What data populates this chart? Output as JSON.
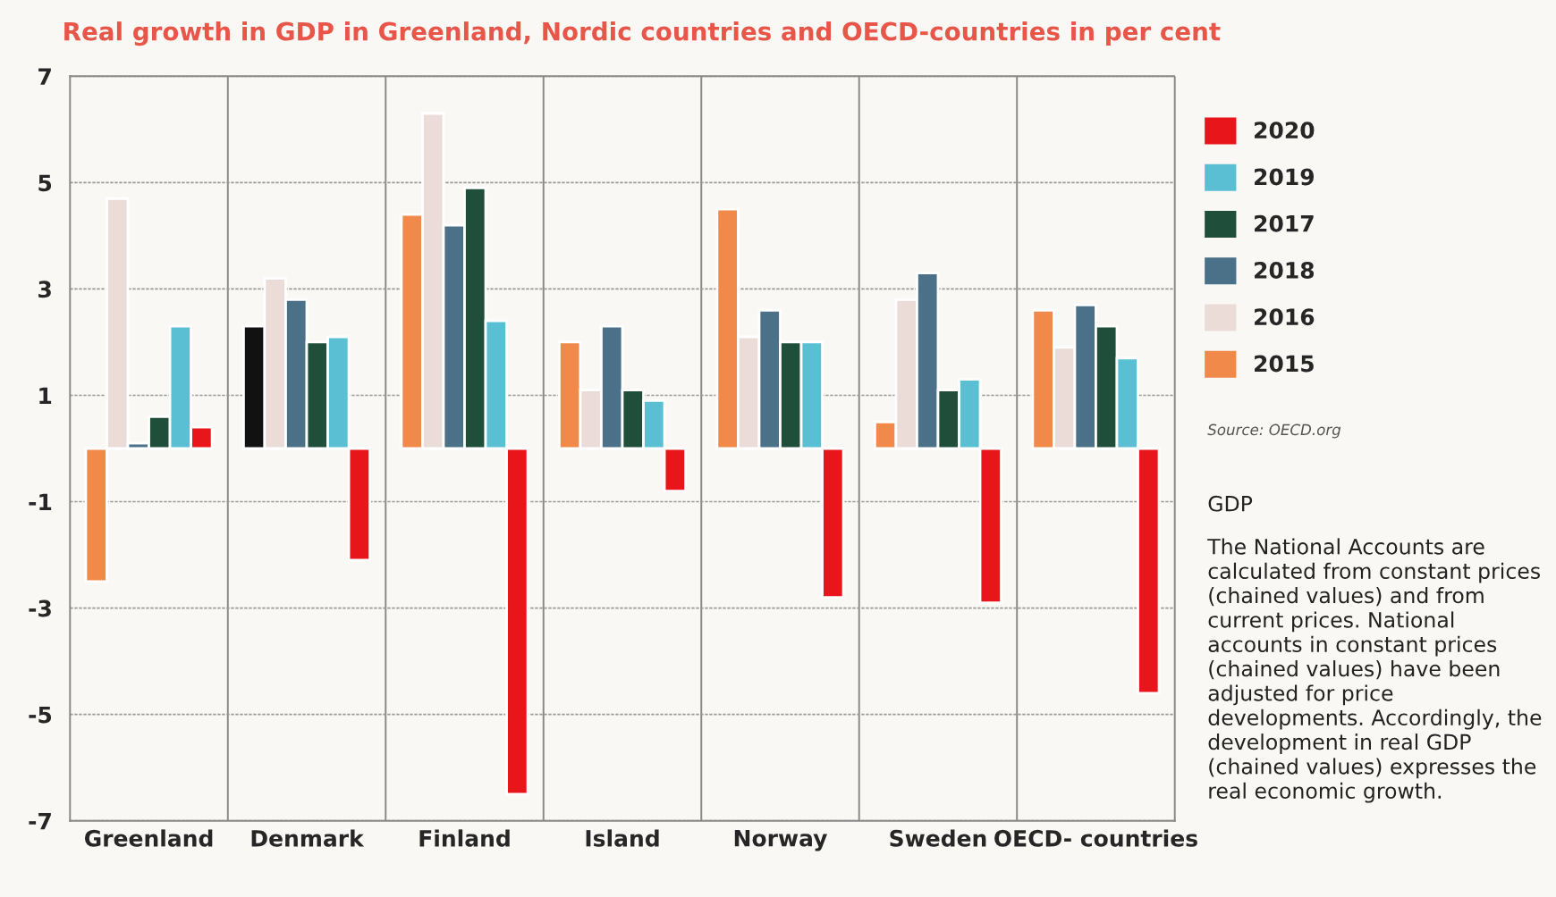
{
  "chart_data": {
    "type": "bar",
    "title": "Real growth in GDP in Greenland, Nordic countries and OECD-countries in per cent",
    "categories": [
      "Greenland",
      "Denmark",
      "Finland",
      "Island",
      "Norway",
      "Sweden",
      "OECD- countries"
    ],
    "series": [
      {
        "name": "2015",
        "color": "#f0894a",
        "colors": [
          "#f0894a",
          "#111111",
          "#f0894a",
          "#f0894a",
          "#f0894a",
          "#f0894a",
          "#f0894a"
        ],
        "values": [
          -2.5,
          2.3,
          4.4,
          2.0,
          4.5,
          0.5,
          2.6
        ]
      },
      {
        "name": "2016",
        "color": "#ecdcd7",
        "values": [
          4.7,
          3.2,
          6.3,
          1.1,
          2.1,
          2.8,
          1.9
        ]
      },
      {
        "name": "2018",
        "color": "#4a7188",
        "values": [
          0.1,
          2.8,
          4.2,
          2.3,
          2.6,
          3.3,
          2.7
        ]
      },
      {
        "name": "2017",
        "color": "#1f4f3b",
        "values": [
          0.6,
          2.0,
          4.9,
          1.1,
          2.0,
          1.1,
          2.3
        ]
      },
      {
        "name": "2019",
        "color": "#5bbfd3",
        "values": [
          2.3,
          2.1,
          2.4,
          0.9,
          2.0,
          1.3,
          1.7
        ]
      },
      {
        "name": "2020",
        "color": "#e8161b",
        "values": [
          0.4,
          -2.1,
          -6.5,
          -0.8,
          -2.8,
          -2.9,
          -4.6
        ]
      }
    ],
    "ylim": [
      -7,
      7
    ],
    "yticks": [
      7,
      5,
      3,
      1,
      -1,
      -3,
      -5,
      -7
    ],
    "grid": true,
    "legend": "right",
    "annotations": [
      "Source: OECD.org",
      "GDP",
      "The National Accounts are calculated from constant prices (chained values) and from current prices. National accounts in constant prices (chained values) have been adjusted for price developments. Accordingly, the development in real GDP (chained values) expresses the real economic growth."
    ]
  }
}
